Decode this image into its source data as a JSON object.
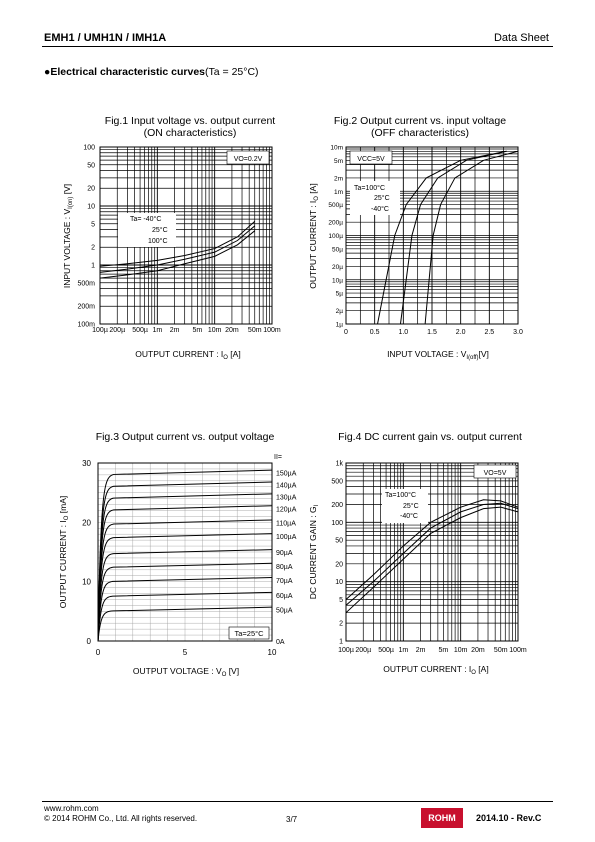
{
  "header": {
    "left": "EMH1 / UMH1N / IMH1A",
    "right": "Data Sheet"
  },
  "section": {
    "bullet": "●",
    "title": "Electrical characteristic curves",
    "cond": "(Ta = 25°C)"
  },
  "figures": [
    {
      "title": "Fig.1 Input voltage vs. output current",
      "subtitle": "(ON characteristics)",
      "xlabel": "OUTPUT CURRENT : I",
      "xsub": "O",
      "xunit": " [A]",
      "ylabel": "INPUT VOLTAGE : V",
      "ysub": "I(on)",
      "yunit": " [V]",
      "cond": "VO=0.2V",
      "legend": [
        "Ta=  -40°C",
        "25°C",
        "100°C"
      ],
      "xticks": [
        "100µ",
        "200µ",
        "500µ",
        "1m",
        "2m",
        "5m",
        "10m",
        "20m",
        "50m",
        "100m"
      ],
      "yticks": [
        "100m",
        "200m",
        "500m",
        "1",
        "2",
        "5",
        "10",
        "20",
        "50",
        "100"
      ]
    },
    {
      "title": "Fig.2 Output current vs. input voltage",
      "subtitle": "(OFF characteristics)",
      "xlabel": "INPUT VOLTAGE : V",
      "xsub": "I(off)",
      "xunit": "[V]",
      "ylabel": "OUTPUT CURRENT : I",
      "ysub": "O",
      "yunit": " [A]",
      "cond": "VCC=5V",
      "legend": [
        "Ta=100°C",
        "25°C",
        "-40°C"
      ],
      "xticks": [
        "0",
        "0.5",
        "1.0",
        "1.5",
        "2.0",
        "2.5",
        "3.0"
      ],
      "yticks": [
        "1µ",
        "2µ",
        "5µ",
        "10µ",
        "20µ",
        "50µ",
        "100µ",
        "200µ",
        "500µ",
        "1m",
        "2m",
        "5m",
        "10m"
      ]
    },
    {
      "title": "Fig.3 Output current  vs. output voltage",
      "xlabel": "OUTPUT VOLTAGE : V",
      "xsub": "O",
      "xunit": " [V]",
      "ylabel": "OUTPUT CURRENT : I",
      "ysub": "O",
      "yunit": " [mA]",
      "cond": "Ta=25°C",
      "legend_head": "II=",
      "curve_labels": [
        "150µA",
        "140µA",
        "130µA",
        "120µA",
        "110µA",
        "100µA",
        "90µA",
        "80µA",
        "70µA",
        "60µA",
        "50µA",
        "0A"
      ],
      "xticks": [
        "0",
        "5",
        "10"
      ],
      "yticks": [
        "0",
        "10",
        "20",
        "30"
      ]
    },
    {
      "title": "Fig.4 DC current gain vs. output current",
      "xlabel": "OUTPUT CURRENT : I",
      "xsub": "O",
      "xunit": " [A]",
      "ylabel": "DC CURRENT GAIN : G",
      "ysub": "I",
      "yunit": "",
      "cond": "VO=5V",
      "legend": [
        "Ta=100°C",
        "25°C",
        "-40°C"
      ],
      "xticks": [
        "100µ",
        "200µ",
        "500µ",
        "1m",
        "2m",
        "5m",
        "10m",
        "20m",
        "50m",
        "100m"
      ],
      "yticks": [
        "1",
        "2",
        "5",
        "10",
        "20",
        "50",
        "100",
        "200",
        "500",
        "1k"
      ]
    }
  ],
  "footer": {
    "url": "www.rohm.com",
    "copyright": "© 2014  ROHM Co., Ltd. All rights reserved.",
    "page": "3/7",
    "logo": "ROHM",
    "rev": "2014.10 -  Rev.C"
  }
}
